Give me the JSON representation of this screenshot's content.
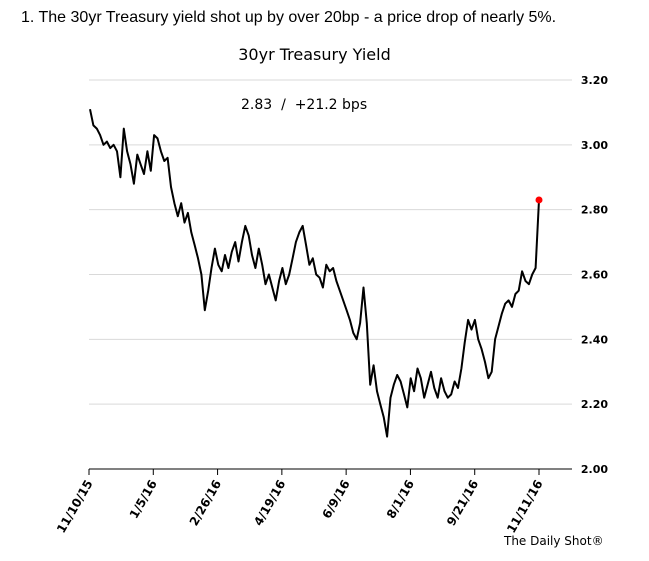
{
  "headline": "1. The 30yr Treasury yield shot up by over 20bp - a price drop of nearly 5%.",
  "credit": "The Daily Shot®",
  "chart_data": {
    "type": "line",
    "title": "30yr Treasury Yield",
    "annotation": "2.83  /  +21.2 bps",
    "xlabel": "",
    "ylabel": "",
    "ylim": [
      2.0,
      3.2
    ],
    "y_ticks": [
      "2.00",
      "2.20",
      "2.40",
      "2.60",
      "2.80",
      "3.00",
      "3.20"
    ],
    "y_axis_side": "right",
    "grid": "horizontal",
    "x_ticks": [
      "11/10/15",
      "1/5/16",
      "2/26/16",
      "4/19/16",
      "6/9/16",
      "8/1/16",
      "9/21/16",
      "11/11/16"
    ],
    "accent_color": "#ff0000",
    "last_point": {
      "x": "11/11/16",
      "y": 2.83
    },
    "series": [
      {
        "values": [
          3.11,
          3.06,
          3.05,
          3.03,
          3.0,
          3.01,
          2.99,
          3.0,
          2.98,
          2.9,
          3.05,
          2.98,
          2.94,
          2.88,
          2.97,
          2.94,
          2.91,
          2.98,
          2.92,
          3.03,
          3.02,
          2.98,
          2.95,
          2.96,
          2.87,
          2.82,
          2.78,
          2.82,
          2.76,
          2.79,
          2.73,
          2.69,
          2.65,
          2.6,
          2.49,
          2.55,
          2.62,
          2.68,
          2.63,
          2.61,
          2.66,
          2.62,
          2.67,
          2.7,
          2.64,
          2.7,
          2.75,
          2.72,
          2.66,
          2.62,
          2.68,
          2.63,
          2.57,
          2.6,
          2.56,
          2.52,
          2.58,
          2.62,
          2.57,
          2.6,
          2.65,
          2.7,
          2.73,
          2.75,
          2.69,
          2.63,
          2.65,
          2.6,
          2.59,
          2.56,
          2.63,
          2.61,
          2.62,
          2.58,
          2.55,
          2.52,
          2.49,
          2.46,
          2.42,
          2.4,
          2.45,
          2.56,
          2.45,
          2.26,
          2.32,
          2.24,
          2.2,
          2.16,
          2.1,
          2.22,
          2.26,
          2.29,
          2.27,
          2.23,
          2.19,
          2.28,
          2.24,
          2.31,
          2.28,
          2.22,
          2.26,
          2.3,
          2.25,
          2.22,
          2.28,
          2.24,
          2.22,
          2.23,
          2.27,
          2.25,
          2.31,
          2.39,
          2.46,
          2.43,
          2.46,
          2.4,
          2.37,
          2.33,
          2.28,
          2.3,
          2.4,
          2.44,
          2.48,
          2.51,
          2.52,
          2.5,
          2.54,
          2.55,
          2.61,
          2.58,
          2.57,
          2.6,
          2.62,
          2.83
        ]
      }
    ]
  }
}
